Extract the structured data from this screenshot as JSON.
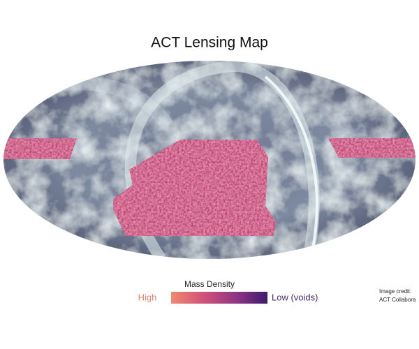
{
  "header": {
    "title": "ACT Lensing Map"
  },
  "legend": {
    "title": "Mass Density",
    "high_label": "High",
    "low_label": "Low (voids)"
  },
  "credit": {
    "line1": "Image credit:",
    "line2": "ACT Collabora"
  }
}
